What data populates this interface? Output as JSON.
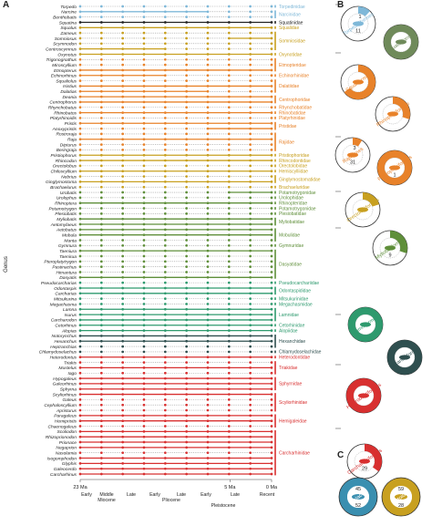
{
  "panels": {
    "a": "A",
    "b": "B",
    "c": "C"
  },
  "axis": {
    "ylabel": "Genus",
    "ticks": [
      {
        "label": "23 Ma",
        "ma": 23
      },
      {
        "label": "5 Ma",
        "ma": 5
      },
      {
        "label": "0 Ma",
        "ma": 0
      }
    ],
    "period_labels": [
      "Early",
      "Middle",
      "Late",
      "Early",
      "Late",
      "Early",
      "Late",
      "Recent"
    ],
    "epoch_labels": [
      "Miocene",
      "Pliocene",
      "Pleistocene"
    ]
  },
  "columns": 10,
  "genera": [
    {
      "name": "Torpedo",
      "color": "#7fb8d8",
      "pattern": "dddddddddd"
    },
    {
      "name": "Narcine",
      "color": "#7fb8d8",
      "pattern": "ssssssdddd"
    },
    {
      "name": "Benthobatis",
      "color": "#7fb8d8",
      "pattern": "dddddddddd"
    },
    {
      "name": "Squatina",
      "color": "#222222",
      "pattern": "ssssssssss"
    },
    {
      "name": "Squalus",
      "color": "#c8a020",
      "pattern": "ssssssssss"
    },
    {
      "name": "Zameus",
      "color": "#c8a020",
      "pattern": "dddddddddd"
    },
    {
      "name": "Somniosus",
      "color": "#c8a020",
      "pattern": "dddddddsss"
    },
    {
      "name": "Scymnodon",
      "color": "#c8a020",
      "pattern": "dddddddddd"
    },
    {
      "name": "Centroscymnus",
      "color": "#c8a020",
      "pattern": "ssssdddddd"
    },
    {
      "name": "Oxynotus",
      "color": "#c8a020",
      "pattern": "ssssssssss"
    },
    {
      "name": "Trigonognathus",
      "color": "#e8822a",
      "pattern": "dddddddddd"
    },
    {
      "name": "Miroscyllium",
      "color": "#e8822a",
      "pattern": "dddddddddd"
    },
    {
      "name": "Etmopterus",
      "color": "#e8822a",
      "pattern": "ssssssssss"
    },
    {
      "name": "Echinorhinus",
      "color": "#e8822a",
      "pattern": "ssssdddddd"
    },
    {
      "name": "Squaliolus",
      "color": "#e8822a",
      "pattern": "dddddddddd"
    },
    {
      "name": "Isistius",
      "color": "#e8822a",
      "pattern": "ssssssssss"
    },
    {
      "name": "Dalatias",
      "color": "#e8822a",
      "pattern": "ssssssdddd"
    },
    {
      "name": "Deania",
      "color": "#e8822a",
      "pattern": "ssssssssss"
    },
    {
      "name": "Centrophorus",
      "color": "#e8822a",
      "pattern": "ssssssssss"
    },
    {
      "name": "Rhynchobatus",
      "color": "#e8822a",
      "pattern": "dddddddddd"
    },
    {
      "name": "Rhinobatos",
      "color": "#e8822a",
      "pattern": "ssssssssss"
    },
    {
      "name": "Platyrhinoidis",
      "color": "#e8822a",
      "pattern": "dddddddddd"
    },
    {
      "name": "Pristis",
      "color": "#e8822a",
      "pattern": "ssssssssss"
    },
    {
      "name": "Anoxypristis",
      "color": "#e8822a",
      "pattern": "ddddddssss"
    },
    {
      "name": "Rostroraja",
      "color": "#e8822a",
      "pattern": "dddddddddd"
    },
    {
      "name": "Raja",
      "color": "#e8822a",
      "pattern": "ssssssssss"
    },
    {
      "name": "Dipturus",
      "color": "#e8822a",
      "pattern": "dddddddddd"
    },
    {
      "name": "Beringraja",
      "color": "#e8822a",
      "pattern": "dddddddddd"
    },
    {
      "name": "Pristiophorus",
      "color": "#c8a020",
      "pattern": "ssssssssss"
    },
    {
      "name": "Rhincodon",
      "color": "#c8a020",
      "pattern": "ssssssssss"
    },
    {
      "name": "Orectolobus",
      "color": "#c8a020",
      "pattern": "dddddddddd"
    },
    {
      "name": "Chiloscyllium",
      "color": "#c8a020",
      "pattern": "ssssssssss"
    },
    {
      "name": "Nebrius",
      "color": "#c8a020",
      "pattern": "dddddddddd"
    },
    {
      "name": "Ginglymostoma",
      "color": "#c8a020",
      "pattern": "ssssssssss"
    },
    {
      "name": "Brachaelurus",
      "color": "#c8a020",
      "pattern": "dddddddddd"
    },
    {
      "name": "Urobatis",
      "color": "#5f8f3a",
      "pattern": "dddddddsss"
    },
    {
      "name": "Urolophus",
      "color": "#5f8f3a",
      "pattern": "dddddddddd"
    },
    {
      "name": "Rhinoptera",
      "color": "#5f8f3a",
      "pattern": "ssssssssss"
    },
    {
      "name": "Potamotrygon",
      "color": "#5f8f3a",
      "pattern": "dddddddddd"
    },
    {
      "name": "Plesiobatis",
      "color": "#5f8f3a",
      "pattern": "dddddddddd"
    },
    {
      "name": "Myliobatis",
      "color": "#5f8f3a",
      "pattern": "ssssssssss"
    },
    {
      "name": "Aetomylaeus",
      "color": "#5f8f3a",
      "pattern": "ssssssssss"
    },
    {
      "name": "Aetobatus",
      "color": "#5f8f3a",
      "pattern": "ssssssssss"
    },
    {
      "name": "Mobula",
      "color": "#5f8f3a",
      "pattern": "ssssssssss"
    },
    {
      "name": "Manta",
      "color": "#5f8f3a",
      "pattern": "dddddddddd"
    },
    {
      "name": "Gymnura",
      "color": "#5f8f3a",
      "pattern": "dddddddddd"
    },
    {
      "name": "Taeniura",
      "color": "#5f8f3a",
      "pattern": "ssssssssss"
    },
    {
      "name": "Taenirua",
      "color": "#5f8f3a",
      "pattern": "dddddddddd"
    },
    {
      "name": "Pteroplatytrygon",
      "color": "#5f8f3a",
      "pattern": "dddddddddd"
    },
    {
      "name": "Pastinachus",
      "color": "#5f8f3a",
      "pattern": "dddddddddd"
    },
    {
      "name": "Himantura",
      "color": "#5f8f3a",
      "pattern": "dddddddddd"
    },
    {
      "name": "Dasyatis",
      "color": "#5f8f3a",
      "pattern": "ssssssssss"
    },
    {
      "name": "Pseudocarcharias",
      "color": "#2e9a6e",
      "pattern": "dddddddddd"
    },
    {
      "name": "Odontaspis",
      "color": "#2e9a6e",
      "pattern": "ssssssssss"
    },
    {
      "name": "Carcharias",
      "color": "#2e9a6e",
      "pattern": "ssssssssss"
    },
    {
      "name": "Mitsukurina",
      "color": "#2e9a6e",
      "pattern": "dddddddddd"
    },
    {
      "name": "Megachasma",
      "color": "#2e9a6e",
      "pattern": "dddddddddd"
    },
    {
      "name": "Lamna",
      "color": "#2e9a6e",
      "pattern": "ssssssssss"
    },
    {
      "name": "Isurus",
      "color": "#2e9a6e",
      "pattern": "ssssssssss"
    },
    {
      "name": "Carcharodon",
      "color": "#2e9a6e",
      "pattern": "ssssssssss"
    },
    {
      "name": "Cetorhinus",
      "color": "#2e9a6e",
      "pattern": "ssssssssss"
    },
    {
      "name": "Alopias",
      "color": "#2e9a6e",
      "pattern": "ssssssssss"
    },
    {
      "name": "Notorynchus",
      "color": "#2f4f4f",
      "pattern": "ssssssssss"
    },
    {
      "name": "Hexanchus",
      "color": "#2f4f4f",
      "pattern": "ssssssssss"
    },
    {
      "name": "Heptranchias",
      "color": "#2f4f4f",
      "pattern": "dddddddddd"
    },
    {
      "name": "Chlamydoselachus",
      "color": "#2f4f4f",
      "pattern": "dddddddddd"
    },
    {
      "name": "Heterodontus",
      "color": "#d83030",
      "pattern": "ssssssssss"
    },
    {
      "name": "Triakis",
      "color": "#d83030",
      "pattern": "dddddddddd"
    },
    {
      "name": "Mustelus",
      "color": "#d83030",
      "pattern": "ssssssssss"
    },
    {
      "name": "Iago",
      "color": "#d83030",
      "pattern": "dddddddddd"
    },
    {
      "name": "Hypogaleus",
      "color": "#d83030",
      "pattern": "ssssssssss"
    },
    {
      "name": "Galeorhinus",
      "color": "#d83030",
      "pattern": "ssssssssss"
    },
    {
      "name": "Sphyrna",
      "color": "#d83030",
      "pattern": "ssssssssss"
    },
    {
      "name": "Scyliorhinus",
      "color": "#d83030",
      "pattern": "ssssssssss"
    },
    {
      "name": "Galeus",
      "color": "#d83030",
      "pattern": "dddddddddd"
    },
    {
      "name": "Cephaloscyllium",
      "color": "#d83030",
      "pattern": "dddddddddd"
    },
    {
      "name": "Apristurus",
      "color": "#d83030",
      "pattern": "dddddddddd"
    },
    {
      "name": "Paragaleus",
      "color": "#d83030",
      "pattern": "ssssssssss"
    },
    {
      "name": "Hemipristis",
      "color": "#d83030",
      "pattern": "ssssssssss"
    },
    {
      "name": "Chaenogaleus",
      "color": "#d83030",
      "pattern": "dddddddddd"
    },
    {
      "name": "Scoliodon",
      "color": "#d83030",
      "pattern": "ssssssssss"
    },
    {
      "name": "Rhizoprionodon",
      "color": "#d83030",
      "pattern": "ssssssssss"
    },
    {
      "name": "Prionace",
      "color": "#d83030",
      "pattern": "ssssssssss"
    },
    {
      "name": "Negaprion",
      "color": "#d83030",
      "pattern": "ssssssssss"
    },
    {
      "name": "Nasolamia",
      "color": "#d83030",
      "pattern": "dddddddddd"
    },
    {
      "name": "Isogomphodon",
      "color": "#d83030",
      "pattern": "ssssssssss"
    },
    {
      "name": "Glyphis",
      "color": "#d83030",
      "pattern": "ssssssssss"
    },
    {
      "name": "Galeocerdo",
      "color": "#d83030",
      "pattern": "ssssssssss"
    },
    {
      "name": "Carcharhinus",
      "color": "#d83030",
      "pattern": "ssssssssss"
    }
  ],
  "families": [
    {
      "name": "Torpedinidae",
      "color": "#7fb8d8",
      "from": 0,
      "to": 0
    },
    {
      "name": "Narcinidae",
      "color": "#7fb8d8",
      "from": 1,
      "to": 2
    },
    {
      "name": "Squatinidae",
      "color": "#222222",
      "from": 3,
      "to": 3
    },
    {
      "name": "Squalidae",
      "color": "#c8a020",
      "from": 4,
      "to": 4
    },
    {
      "name": "Somniosidae",
      "color": "#c8a020",
      "from": 5,
      "to": 8
    },
    {
      "name": "Oxynotidae",
      "color": "#c8a020",
      "from": 9,
      "to": 9
    },
    {
      "name": "Etmopteridae",
      "color": "#e8822a",
      "from": 10,
      "to": 12
    },
    {
      "name": "Echinorhinidae",
      "color": "#e8822a",
      "from": 13,
      "to": 13
    },
    {
      "name": "Dalatiidae",
      "color": "#e8822a",
      "from": 14,
      "to": 16
    },
    {
      "name": "Centrophoridae",
      "color": "#e8822a",
      "from": 17,
      "to": 18
    },
    {
      "name": "Rhynchobatidae",
      "color": "#e8822a",
      "from": 19,
      "to": 19
    },
    {
      "name": "Rhinobatidae",
      "color": "#e8822a",
      "from": 20,
      "to": 20
    },
    {
      "name": "Platyrhinidae",
      "color": "#e8822a",
      "from": 21,
      "to": 21
    },
    {
      "name": "Pristidae",
      "color": "#e8822a",
      "from": 22,
      "to": 23
    },
    {
      "name": "Rajidae",
      "color": "#e8822a",
      "from": 24,
      "to": 27
    },
    {
      "name": "Pristiophoridae",
      "color": "#c8a020",
      "from": 28,
      "to": 28
    },
    {
      "name": "Rhincodontidae",
      "color": "#c8a020",
      "from": 29,
      "to": 29
    },
    {
      "name": "Orectolobidae",
      "color": "#c8a020",
      "from": 30,
      "to": 30
    },
    {
      "name": "Hemiscylliidae",
      "color": "#c8a020",
      "from": 31,
      "to": 31
    },
    {
      "name": "Ginglymostomatidae",
      "color": "#c8a020",
      "from": 32,
      "to": 33
    },
    {
      "name": "Brachaeluridae",
      "color": "#c8a020",
      "from": 34,
      "to": 34
    },
    {
      "name": "Potamotrygonidae",
      "color": "#5f8f3a",
      "from": 35,
      "to": 35
    },
    {
      "name": "Urolophidae",
      "color": "#5f8f3a",
      "from": 36,
      "to": 36
    },
    {
      "name": "Rhinopteridae",
      "color": "#5f8f3a",
      "from": 37,
      "to": 37
    },
    {
      "name": "Potamotrygonidae",
      "color": "#5f8f3a",
      "from": 38,
      "to": 38
    },
    {
      "name": "Plesiobatidae",
      "color": "#5f8f3a",
      "from": 39,
      "to": 39
    },
    {
      "name": "Myliobatidae",
      "color": "#5f8f3a",
      "from": 40,
      "to": 41
    },
    {
      "name": "Mobulidae",
      "color": "#5f8f3a",
      "from": 42,
      "to": 44
    },
    {
      "name": "Gymnuridae",
      "color": "#5f8f3a",
      "from": 45,
      "to": 45
    },
    {
      "name": "Dasyatidae",
      "color": "#5f8f3a",
      "from": 46,
      "to": 51
    },
    {
      "name": "Pseudocarchariidae",
      "color": "#2e9a6e",
      "from": 52,
      "to": 52
    },
    {
      "name": "Odontaspididae",
      "color": "#2e9a6e",
      "from": 53,
      "to": 54
    },
    {
      "name": "Mitsukurinidae",
      "color": "#2e9a6e",
      "from": 55,
      "to": 55
    },
    {
      "name": "Megachasmidae",
      "color": "#2e9a6e",
      "from": 56,
      "to": 56
    },
    {
      "name": "Lamnidae",
      "color": "#2e9a6e",
      "from": 57,
      "to": 59
    },
    {
      "name": "Cetorhinidae",
      "color": "#2e9a6e",
      "from": 60,
      "to": 60
    },
    {
      "name": "Alopiidae",
      "color": "#2e9a6e",
      "from": 61,
      "to": 61
    },
    {
      "name": "Hexanchidae",
      "color": "#2f4f4f",
      "from": 62,
      "to": 64
    },
    {
      "name": "Chlamydoselachidae",
      "color": "#2f4f4f",
      "from": 65,
      "to": 65
    },
    {
      "name": "Heterodontidae",
      "color": "#d83030",
      "from": 66,
      "to": 66
    },
    {
      "name": "Triakidae",
      "color": "#d83030",
      "from": 67,
      "to": 69
    },
    {
      "name": "Sphyrnidae",
      "color": "#d83030",
      "from": 70,
      "to": 72
    },
    {
      "name": "Scyliorhinidae",
      "color": "#d83030",
      "from": 73,
      "to": 76
    },
    {
      "name": "Hemigaleidae",
      "color": "#d83030",
      "from": 77,
      "to": 79
    },
    {
      "name": "Carcharhinidae",
      "color": "#d83030",
      "from": 80,
      "to": 88
    }
  ],
  "orders": [
    {
      "name": "Torpediniformes",
      "color": "#7fb8d8",
      "top": 5,
      "bottom": 11,
      "center": "Torpediniformes"
    },
    {
      "name": "Squatiniformes",
      "color": "#6f8a5a",
      "top": 11,
      "bottom": 29,
      "center": "Squatiniformes"
    },
    {
      "name": "Squaliformes",
      "color": "#e8822a",
      "top": 58,
      "bottom": 110,
      "center": "Squaliformes"
    },
    {
      "name": "Rhinopristiformes",
      "color": "#e8822a",
      "top": 100,
      "bottom": 135,
      "center": "Rhinopristiformes"
    },
    {
      "name": "Rajiformes",
      "color": "#e8822a",
      "top": 150,
      "bottom": 185,
      "center": "Rajiformes"
    },
    {
      "name": "Pristiophoriformes",
      "color": "#e8822a",
      "top": 160,
      "bottom": 200,
      "center": "Pristiophoriformes"
    },
    {
      "name": "Orectolobiformes",
      "color": "#c8a020",
      "top": 210,
      "bottom": 245,
      "center": "Orectolobiformes"
    },
    {
      "name": "Myliobatiformes",
      "color": "#5f8f3a",
      "top": 250,
      "bottom": 335,
      "center": "Myliobatiformes"
    },
    {
      "name": "Lamniformes",
      "color": "#2e9a6e",
      "top": 345,
      "bottom": 395,
      "center": "Lamniformes"
    },
    {
      "name": "Hexanchiformes",
      "color": "#2f4f4f",
      "top": 390,
      "bottom": 440,
      "center": "Hexanchiformes"
    },
    {
      "name": "Heterodontiformes",
      "color": "#d83030",
      "top": 400,
      "bottom": 460,
      "center": "Heterodontiformes"
    },
    {
      "name": "Carcharhiniformes",
      "color": "#d83030",
      "top": 470,
      "bottom": 515,
      "center": "Carcharhiniformes"
    }
  ],
  "donuts": [
    {
      "label": "Torpediniformes",
      "color": "#7fb8d8",
      "top": "1",
      "bottom": "11",
      "fill": 0.12
    },
    {
      "label": "Squatiniformes",
      "color": "#6f8a5a",
      "top": "",
      "bottom": "",
      "fill": 1.0
    },
    {
      "label": "Squaliformes",
      "color": "#e8822a",
      "top": "",
      "bottom": "",
      "fill": 0.65
    },
    {
      "label": "Rhinopristiformes",
      "color": "#e8822a",
      "top": "",
      "bottom": "",
      "fill": 0.3
    },
    {
      "label": "Rajiformes",
      "color": "#e8822a",
      "top": "3",
      "bottom": "31",
      "fill": 0.09
    },
    {
      "label": "Pristiophoriformes",
      "color": "#e8822a",
      "top": "",
      "bottom": "1",
      "fill": 1.0
    },
    {
      "label": "Orectolobiformes",
      "color": "#c8a020",
      "top": "",
      "bottom": "",
      "fill": 0.2
    },
    {
      "label": "Myliobatiformes",
      "color": "#5f8f3a",
      "top": "",
      "bottom": "9",
      "fill": 0.3
    },
    {
      "label": "Lamniformes",
      "color": "#2e9a6e",
      "top": "",
      "bottom": "",
      "fill": 1.0
    },
    {
      "label": "Hexanchiformes",
      "color": "#2f4f4f",
      "top": "",
      "bottom": "",
      "fill": 1.0
    },
    {
      "label": "Heterodontiformes",
      "color": "#d83030",
      "top": "",
      "bottom": "",
      "fill": 1.0
    },
    {
      "label": "Carcharhiniformes",
      "color": "#d83030",
      "top": "",
      "bottom": "29",
      "fill": 0.35
    }
  ],
  "panel_c": [
    {
      "label": "Selachii",
      "color": "#3a8fb0",
      "top": "45",
      "bottom": "52"
    },
    {
      "label": "Batoidea",
      "color": "#c8a020",
      "top": "59",
      "bottom": "28"
    }
  ]
}
